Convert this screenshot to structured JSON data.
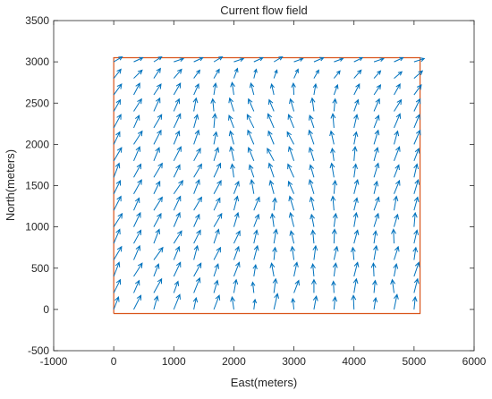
{
  "chart_data": {
    "type": "quiver",
    "title": "Current flow field",
    "xlabel": "East(meters)",
    "ylabel": "North(meters)",
    "xlim": [
      -1000,
      6000
    ],
    "ylim": [
      -500,
      3500
    ],
    "xticks": [
      -1000,
      0,
      1000,
      2000,
      3000,
      4000,
      5000,
      6000
    ],
    "yticks": [
      -500,
      0,
      500,
      1000,
      1500,
      2000,
      2500,
      3000,
      3500
    ],
    "color": "#0072bd",
    "x": [
      0,
      333,
      667,
      1000,
      1333,
      1667,
      2000,
      2333,
      2667,
      3000,
      3333,
      3667,
      4000,
      4333,
      4667,
      5000
    ],
    "y": [
      0,
      200,
      400,
      600,
      800,
      1000,
      1200,
      1400,
      1600,
      1800,
      2000,
      2200,
      2400,
      2600,
      2800,
      3000
    ],
    "u": [
      [
        80,
        120,
        60,
        100,
        40,
        90,
        -30,
        20,
        60,
        -20,
        40,
        20,
        -10,
        30,
        50,
        20
      ],
      [
        110,
        90,
        130,
        70,
        100,
        60,
        40,
        -20,
        30,
        80,
        0,
        -10,
        40,
        20,
        -30,
        60
      ],
      [
        90,
        140,
        80,
        110,
        120,
        70,
        90,
        30,
        -40,
        50,
        -20,
        30,
        60,
        -10,
        40,
        80
      ],
      [
        130,
        100,
        150,
        90,
        60,
        110,
        80,
        60,
        20,
        -30,
        30,
        50,
        -20,
        40,
        70,
        30
      ],
      [
        100,
        120,
        90,
        130,
        110,
        80,
        100,
        50,
        40,
        -50,
        -20,
        10,
        60,
        30,
        -10,
        50
      ],
      [
        140,
        110,
        120,
        100,
        90,
        130,
        70,
        80,
        -30,
        -60,
        -40,
        30,
        40,
        70,
        60,
        20
      ],
      [
        120,
        90,
        140,
        110,
        130,
        100,
        60,
        90,
        20,
        -70,
        -50,
        -20,
        50,
        80,
        40,
        60
      ],
      [
        110,
        130,
        100,
        150,
        90,
        120,
        80,
        -40,
        -60,
        -90,
        -70,
        20,
        60,
        50,
        90,
        70
      ],
      [
        90,
        120,
        140,
        100,
        130,
        110,
        -30,
        -70,
        -80,
        -100,
        -60,
        -40,
        30,
        70,
        80,
        50
      ],
      [
        130,
        100,
        90,
        120,
        110,
        70,
        -50,
        -90,
        -110,
        -80,
        -70,
        -30,
        20,
        60,
        90,
        80
      ],
      [
        100,
        140,
        120,
        90,
        80,
        40,
        -60,
        -100,
        -90,
        -110,
        -80,
        -50,
        40,
        70,
        60,
        100
      ],
      [
        120,
        90,
        130,
        110,
        60,
        20,
        -80,
        -110,
        -100,
        -90,
        -70,
        -20,
        50,
        80,
        100,
        90
      ],
      [
        110,
        130,
        100,
        90,
        40,
        -20,
        -70,
        -90,
        -80,
        -60,
        -30,
        20,
        70,
        90,
        120,
        100
      ],
      [
        130,
        100,
        120,
        110,
        80,
        30,
        -30,
        -50,
        -40,
        -10,
        30,
        60,
        90,
        110,
        100,
        120
      ],
      [
        120,
        140,
        110,
        130,
        100,
        90,
        60,
        40,
        50,
        70,
        80,
        100,
        120,
        110,
        130,
        140
      ],
      [
        140,
        150,
        130,
        160,
        150,
        140,
        160,
        150,
        140,
        150,
        160,
        150,
        140,
        160,
        150,
        170
      ]
    ],
    "v": [
      [
        150,
        170,
        160,
        180,
        140,
        170,
        150,
        120,
        190,
        130,
        160,
        150,
        170,
        140,
        180,
        150
      ],
      [
        160,
        150,
        170,
        140,
        180,
        150,
        160,
        130,
        170,
        150,
        160,
        140,
        170,
        150,
        160,
        170
      ],
      [
        170,
        160,
        150,
        170,
        160,
        150,
        170,
        140,
        160,
        170,
        150,
        160,
        170,
        160,
        150,
        170
      ],
      [
        160,
        170,
        150,
        160,
        170,
        150,
        160,
        170,
        150,
        160,
        170,
        160,
        150,
        170,
        160,
        150
      ],
      [
        170,
        160,
        170,
        150,
        160,
        170,
        150,
        160,
        170,
        150,
        160,
        170,
        160,
        150,
        170,
        160
      ],
      [
        160,
        170,
        160,
        170,
        150,
        160,
        170,
        150,
        160,
        170,
        150,
        160,
        170,
        160,
        150,
        170
      ],
      [
        170,
        150,
        160,
        170,
        160,
        150,
        170,
        160,
        150,
        170,
        160,
        170,
        150,
        160,
        170,
        160
      ],
      [
        160,
        170,
        150,
        160,
        170,
        160,
        150,
        170,
        160,
        150,
        170,
        160,
        170,
        150,
        160,
        170
      ],
      [
        170,
        160,
        170,
        150,
        160,
        170,
        160,
        150,
        170,
        160,
        150,
        170,
        160,
        170,
        150,
        160
      ],
      [
        160,
        170,
        160,
        170,
        150,
        160,
        170,
        160,
        150,
        170,
        160,
        150,
        170,
        160,
        170,
        150
      ],
      [
        150,
        160,
        170,
        160,
        170,
        150,
        160,
        170,
        160,
        150,
        170,
        160,
        150,
        170,
        160,
        170
      ],
      [
        160,
        150,
        160,
        170,
        160,
        170,
        150,
        160,
        170,
        160,
        150,
        170,
        160,
        150,
        170,
        160
      ],
      [
        140,
        150,
        160,
        150,
        160,
        150,
        160,
        150,
        140,
        150,
        160,
        150,
        140,
        150,
        140,
        150
      ],
      [
        130,
        140,
        130,
        140,
        130,
        140,
        150,
        140,
        130,
        140,
        130,
        120,
        130,
        120,
        130,
        120
      ],
      [
        110,
        100,
        120,
        110,
        100,
        110,
        120,
        110,
        100,
        110,
        100,
        90,
        100,
        90,
        80,
        90
      ],
      [
        60,
        50,
        60,
        40,
        50,
        60,
        40,
        50,
        60,
        40,
        50,
        40,
        50,
        40,
        50,
        40
      ]
    ],
    "boundary": {
      "x": [
        0,
        5100,
        5100,
        0,
        0
      ],
      "y": [
        -50,
        -50,
        3050,
        3050,
        -50
      ],
      "color": "#d95319"
    }
  }
}
